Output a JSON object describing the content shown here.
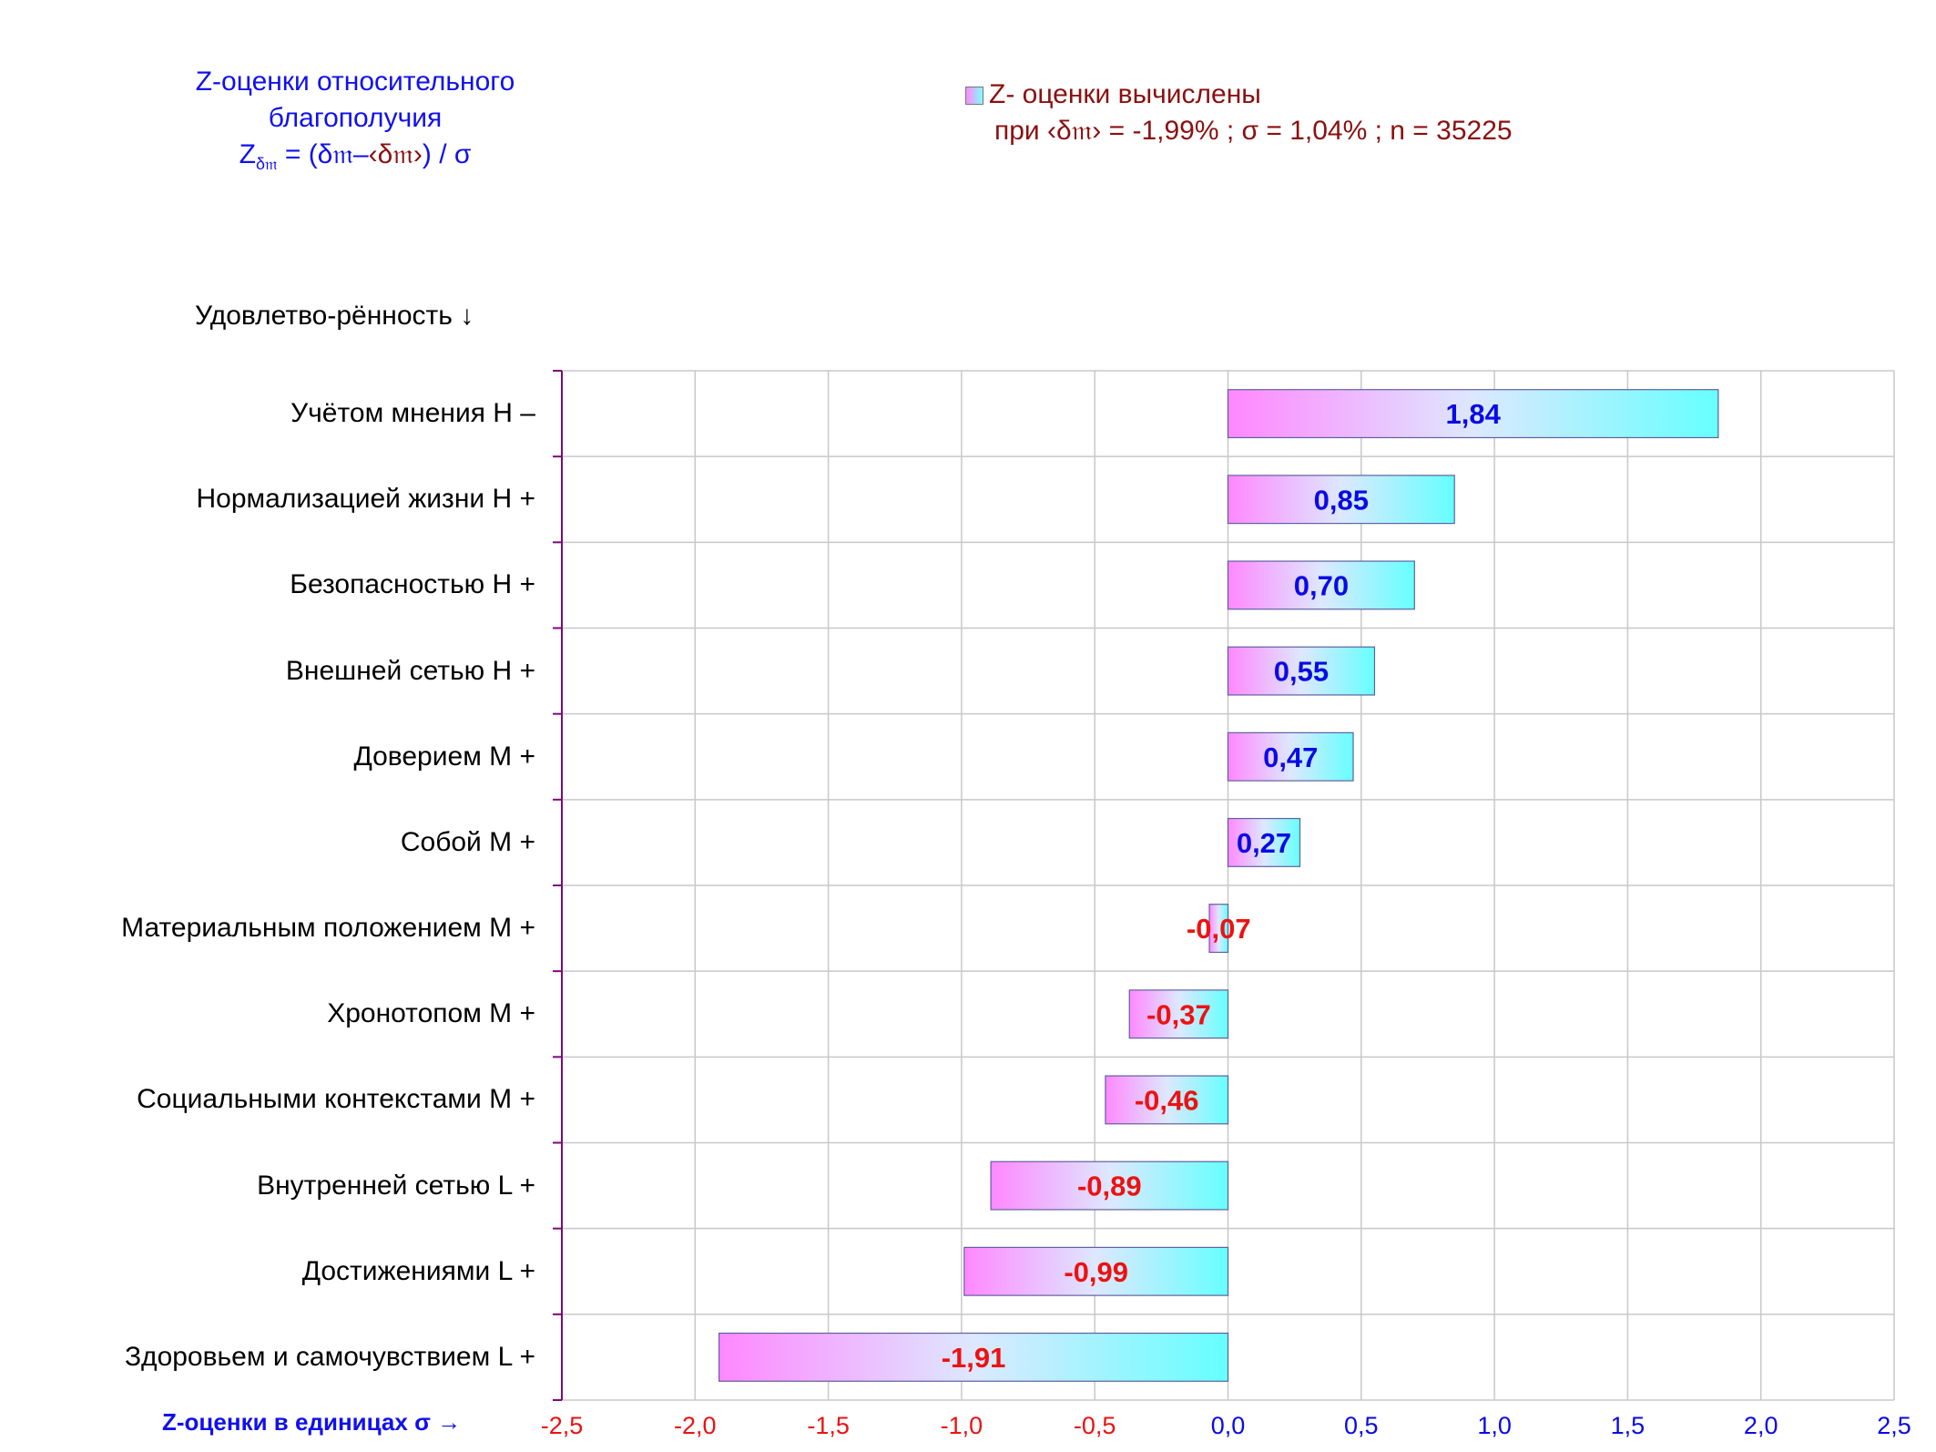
{
  "title": {
    "line1": "Z-оценки  относительного",
    "line2": "благополучия",
    "formula_z": "Z",
    "formula_sub": "δ𝔪",
    "formula_eq": " = (δ𝔪–",
    "formula_mean": "‹δ𝔪›",
    "formula_end": ")  / σ"
  },
  "legend": {
    "line1": "Z- оценки вычислены",
    "line2": "при ‹δ𝔪› = -1,99% ; σ = 1,04% ; n = 35225"
  },
  "satisfaction_label": "Удовлетво-рённость ↓",
  "xaxis_title": "Z-оценки в единицах σ →",
  "colors": {
    "positive_label": "#0a0ae6",
    "negative_label": "#ee1111",
    "bar_left": "#ff88ff",
    "bar_right": "#66ffff",
    "grid": "#c8c8c8",
    "axis": "#7a0a7a"
  },
  "chart_data": {
    "type": "bar",
    "orientation": "horizontal",
    "categories": [
      "Учётом мнения  Н –",
      "Нормализацией жизни  Н +",
      "Безопасностью  Н +",
      "Внешней сетью  Н +",
      "Доверием  М +",
      "Собой  М +",
      "Материальным положением  М +",
      "Хронотопом  М +",
      "Социальными контекстами  М +",
      "Внутренней сетью  L +",
      "Достижениями  L +",
      "Здоровьем и самочувствием  L +"
    ],
    "values": [
      1.84,
      0.85,
      0.7,
      0.55,
      0.47,
      0.27,
      -0.07,
      -0.37,
      -0.46,
      -0.89,
      -0.99,
      -1.91
    ],
    "value_labels": [
      "1,84",
      "0,85",
      "0,70",
      "0,55",
      "0,47",
      "0,27",
      "-0,07",
      "-0,37",
      "-0,46",
      "-0,89",
      "-0,99",
      "-1,91"
    ],
    "xlim": [
      -2.5,
      2.5
    ],
    "xticks": [
      -2.5,
      -2.0,
      -1.5,
      -1.0,
      -0.5,
      0.0,
      0.5,
      1.0,
      1.5,
      2.0,
      2.5
    ],
    "xtick_labels": [
      "-2,5",
      "-2,0",
      "-1,5",
      "-1,0",
      "-0,5",
      "0,0",
      "0,5",
      "1,0",
      "1,5",
      "2,0",
      "2,5"
    ],
    "grid": true,
    "legend_placement": "top-right"
  }
}
